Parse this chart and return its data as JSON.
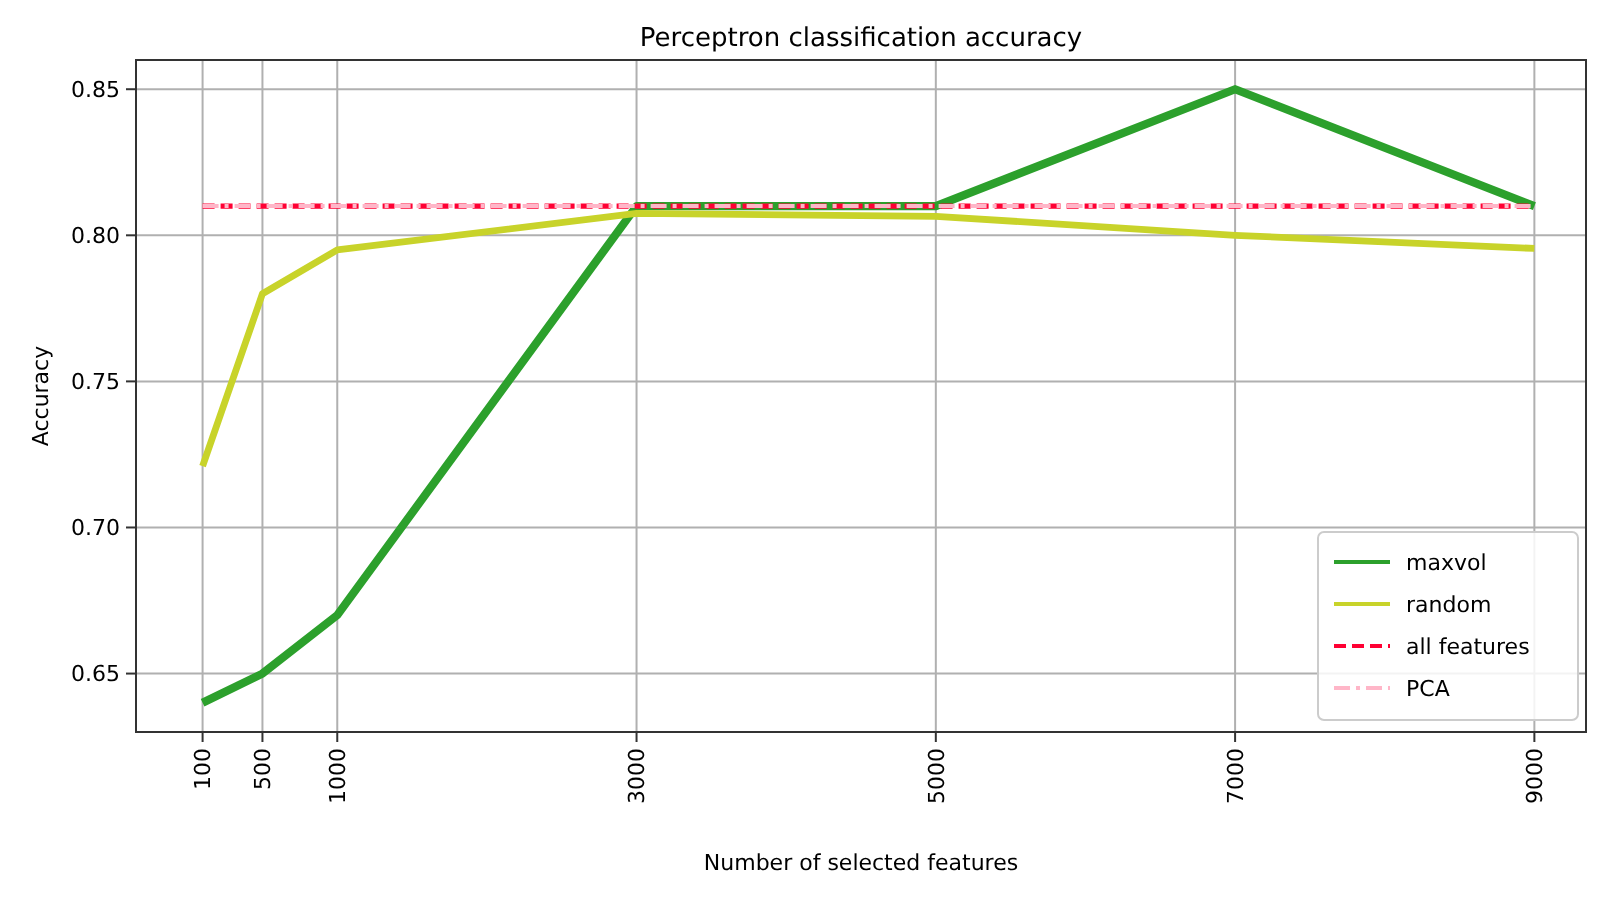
{
  "chart_data": {
    "type": "line",
    "title": "Perceptron classification accuracy",
    "xlabel": "Number of selected features",
    "ylabel": "Accuracy",
    "x": [
      100,
      500,
      1000,
      3000,
      5000,
      7000,
      9000
    ],
    "series": [
      {
        "name": "maxvol",
        "color": "#2ca02c",
        "values": [
          0.64,
          0.65,
          0.67,
          0.81,
          0.81,
          0.85,
          0.81
        ]
      },
      {
        "name": "random",
        "color": "#c8d32a",
        "values": [
          0.721,
          0.78,
          0.795,
          0.8075,
          0.8065,
          0.8,
          0.7955
        ]
      },
      {
        "name": "all features",
        "color": "#ff0033",
        "values": [
          0.81,
          0.81,
          0.81,
          0.81,
          0.81,
          0.81,
          0.81
        ],
        "line_style": "dashed"
      },
      {
        "name": "PCA",
        "color": "#ffb6c8",
        "values": [
          0.81,
          0.81,
          0.81,
          0.81,
          0.81,
          0.81,
          0.81
        ],
        "line_style": "dashdot"
      }
    ],
    "xlim": [
      -345,
      9345
    ],
    "ylim": [
      0.63,
      0.86
    ],
    "xticks": [
      100,
      500,
      1000,
      3000,
      5000,
      7000,
      9000
    ],
    "yticks": [
      {
        "value": 0.65,
        "label": "0.65"
      },
      {
        "value": 0.7,
        "label": "0.70"
      },
      {
        "value": 0.75,
        "label": "0.75"
      },
      {
        "value": 0.8,
        "label": "0.80"
      },
      {
        "value": 0.85,
        "label": "0.85"
      }
    ],
    "grid": true,
    "legend": "bottom right",
    "marker": "none"
  }
}
